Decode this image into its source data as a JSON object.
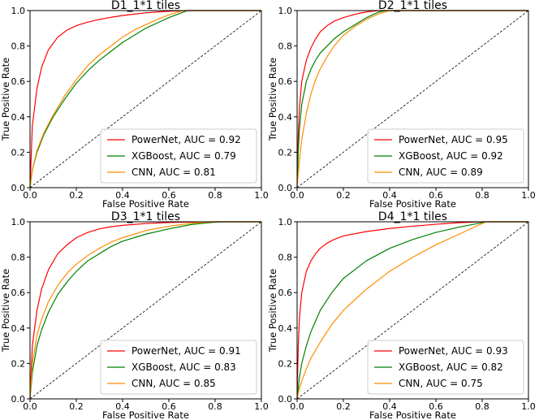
{
  "chart_data": [
    {
      "type": "line",
      "title": "D1_1*1 tiles",
      "xlabel": "False Positive Rate",
      "ylabel": "True Positive Rate",
      "xlim": [
        0,
        1
      ],
      "ylim": [
        0,
        1
      ],
      "xticks": [
        "0.0",
        "0.2",
        "0.4",
        "0.6",
        "0.8",
        "1.0"
      ],
      "yticks": [
        "0.0",
        "0.2",
        "0.4",
        "0.6",
        "0.8",
        "1.0"
      ],
      "grid": false,
      "legend_position": "lower-right",
      "diagonal": true,
      "series": [
        {
          "name": "PowerNet, AUC = 0.92",
          "color": "#ff0000",
          "x": [
            0,
            0.01,
            0.03,
            0.05,
            0.08,
            0.12,
            0.16,
            0.2,
            0.25,
            0.3,
            0.35,
            0.4,
            0.45,
            0.5,
            0.55,
            0.6,
            0.65,
            0.68
          ],
          "y": [
            0,
            0.35,
            0.56,
            0.68,
            0.78,
            0.85,
            0.89,
            0.915,
            0.935,
            0.95,
            0.962,
            0.972,
            0.98,
            0.987,
            0.992,
            0.996,
            0.999,
            1.0
          ]
        },
        {
          "name": "XGBoost, AUC = 0.79",
          "color": "#008000",
          "x": [
            0,
            0.01,
            0.03,
            0.06,
            0.1,
            0.15,
            0.2,
            0.25,
            0.3,
            0.35,
            0.4,
            0.45,
            0.5,
            0.55,
            0.6,
            0.65,
            0.68
          ],
          "y": [
            0,
            0.1,
            0.2,
            0.3,
            0.4,
            0.5,
            0.59,
            0.66,
            0.72,
            0.77,
            0.82,
            0.86,
            0.9,
            0.93,
            0.96,
            0.985,
            1.0
          ]
        },
        {
          "name": "CNN, AUC = 0.81",
          "color": "#ff8c00",
          "x": [
            0,
            0.01,
            0.03,
            0.06,
            0.1,
            0.15,
            0.2,
            0.25,
            0.3,
            0.35,
            0.4,
            0.45,
            0.5,
            0.55,
            0.6,
            0.65,
            0.67
          ],
          "y": [
            0,
            0.1,
            0.21,
            0.31,
            0.41,
            0.52,
            0.61,
            0.69,
            0.75,
            0.8,
            0.85,
            0.89,
            0.92,
            0.95,
            0.975,
            0.995,
            1.0
          ]
        }
      ]
    },
    {
      "type": "line",
      "title": "D2_1*1 tiles",
      "xlabel": "False Positive Rate",
      "ylabel": "True Positive Rate",
      "xlim": [
        0,
        1
      ],
      "ylim": [
        0,
        1
      ],
      "xticks": [
        "0.0",
        "0.2",
        "0.4",
        "0.6",
        "0.8",
        "1.0"
      ],
      "yticks": [
        "0.0",
        "0.2",
        "0.4",
        "0.6",
        "0.8",
        "1.0"
      ],
      "grid": false,
      "legend_position": "lower-right",
      "diagonal": true,
      "series": [
        {
          "name": "PowerNet, AUC = 0.95",
          "color": "#ff0000",
          "x": [
            0,
            0.005,
            0.01,
            0.02,
            0.04,
            0.06,
            0.08,
            0.1,
            0.13,
            0.16,
            0.2,
            0.24,
            0.28,
            0.32,
            0.36
          ],
          "y": [
            0,
            0.3,
            0.45,
            0.6,
            0.72,
            0.79,
            0.84,
            0.88,
            0.915,
            0.94,
            0.96,
            0.975,
            0.988,
            0.996,
            1.0
          ]
        },
        {
          "name": "XGBoost, AUC = 0.92",
          "color": "#008000",
          "x": [
            0,
            0.005,
            0.01,
            0.02,
            0.04,
            0.06,
            0.08,
            0.1,
            0.13,
            0.16,
            0.2,
            0.25,
            0.3,
            0.35,
            0.38
          ],
          "y": [
            0,
            0.2,
            0.33,
            0.47,
            0.6,
            0.67,
            0.72,
            0.76,
            0.8,
            0.84,
            0.88,
            0.92,
            0.96,
            0.99,
            1.0
          ]
        },
        {
          "name": "CNN, AUC = 0.89",
          "color": "#ff8c00",
          "x": [
            0,
            0.01,
            0.02,
            0.04,
            0.06,
            0.08,
            0.1,
            0.13,
            0.16,
            0.2,
            0.25,
            0.3,
            0.35,
            0.4
          ],
          "y": [
            0,
            0.15,
            0.27,
            0.42,
            0.53,
            0.61,
            0.67,
            0.74,
            0.8,
            0.86,
            0.91,
            0.95,
            0.98,
            1.0
          ]
        }
      ]
    },
    {
      "type": "line",
      "title": "D3_1*1 tiles",
      "xlabel": "False Positive Rate",
      "ylabel": "True Positive Rate",
      "xlim": [
        0,
        1
      ],
      "ylim": [
        0,
        1
      ],
      "xticks": [
        "0.0",
        "0.2",
        "0.4",
        "0.6",
        "0.8",
        "1.0"
      ],
      "yticks": [
        "0.0",
        "0.2",
        "0.4",
        "0.6",
        "0.8",
        "1.0"
      ],
      "grid": false,
      "legend_position": "lower-right",
      "diagonal": true,
      "series": [
        {
          "name": "PowerNet, AUC = 0.91",
          "color": "#ff0000",
          "x": [
            0,
            0.01,
            0.03,
            0.05,
            0.08,
            0.12,
            0.16,
            0.2,
            0.25,
            0.3,
            0.35,
            0.4,
            0.5,
            0.6,
            0.7,
            0.8
          ],
          "y": [
            0,
            0.3,
            0.5,
            0.62,
            0.73,
            0.82,
            0.87,
            0.91,
            0.94,
            0.96,
            0.972,
            0.98,
            0.99,
            0.996,
            0.999,
            1.0
          ]
        },
        {
          "name": "XGBoost, AUC = 0.83",
          "color": "#008000",
          "x": [
            0,
            0.01,
            0.03,
            0.05,
            0.08,
            0.12,
            0.16,
            0.2,
            0.25,
            0.3,
            0.35,
            0.4,
            0.5,
            0.6,
            0.7,
            0.8,
            0.85
          ],
          "y": [
            0,
            0.15,
            0.3,
            0.39,
            0.49,
            0.59,
            0.66,
            0.72,
            0.78,
            0.82,
            0.86,
            0.89,
            0.93,
            0.96,
            0.985,
            0.998,
            1.0
          ]
        },
        {
          "name": "CNN, AUC = 0.85",
          "color": "#ff8c00",
          "x": [
            0,
            0.01,
            0.03,
            0.05,
            0.08,
            0.12,
            0.16,
            0.2,
            0.25,
            0.3,
            0.35,
            0.4,
            0.5,
            0.6,
            0.7,
            0.8
          ],
          "y": [
            0,
            0.2,
            0.36,
            0.45,
            0.55,
            0.64,
            0.71,
            0.76,
            0.81,
            0.85,
            0.885,
            0.91,
            0.95,
            0.975,
            0.992,
            1.0
          ]
        }
      ]
    },
    {
      "type": "line",
      "title": "D4_1*1 tiles",
      "xlabel": "False Positive Rate",
      "ylabel": "True Positive Rate",
      "xlim": [
        0,
        1
      ],
      "ylim": [
        0,
        1
      ],
      "xticks": [
        "0.0",
        "0.2",
        "0.4",
        "0.6",
        "0.8",
        "1.0"
      ],
      "yticks": [
        "0.0",
        "0.2",
        "0.4",
        "0.6",
        "0.8",
        "1.0"
      ],
      "grid": false,
      "legend_position": "lower-right",
      "diagonal": true,
      "series": [
        {
          "name": "PowerNet, AUC = 0.93",
          "color": "#ff0000",
          "x": [
            0,
            0.005,
            0.01,
            0.02,
            0.04,
            0.06,
            0.08,
            0.1,
            0.13,
            0.16,
            0.2,
            0.3,
            0.4,
            0.5,
            0.6,
            0.7,
            0.8
          ],
          "y": [
            0,
            0.3,
            0.45,
            0.6,
            0.72,
            0.78,
            0.82,
            0.85,
            0.88,
            0.9,
            0.92,
            0.945,
            0.962,
            0.975,
            0.986,
            0.995,
            1.0
          ]
        },
        {
          "name": "XGBoost, AUC = 0.82",
          "color": "#008000",
          "x": [
            0,
            0.01,
            0.02,
            0.04,
            0.06,
            0.1,
            0.15,
            0.2,
            0.3,
            0.4,
            0.5,
            0.6,
            0.7,
            0.8,
            0.82
          ],
          "y": [
            0,
            0.12,
            0.2,
            0.3,
            0.38,
            0.5,
            0.6,
            0.68,
            0.78,
            0.85,
            0.9,
            0.94,
            0.97,
            0.995,
            1.0
          ]
        },
        {
          "name": "CNN, AUC = 0.75",
          "color": "#ff8c00",
          "x": [
            0,
            0.01,
            0.02,
            0.04,
            0.06,
            0.1,
            0.15,
            0.2,
            0.3,
            0.4,
            0.5,
            0.6,
            0.7,
            0.8,
            0.82
          ],
          "y": [
            0,
            0.06,
            0.1,
            0.17,
            0.23,
            0.32,
            0.42,
            0.5,
            0.62,
            0.72,
            0.8,
            0.87,
            0.93,
            0.99,
            1.0
          ]
        }
      ]
    }
  ]
}
